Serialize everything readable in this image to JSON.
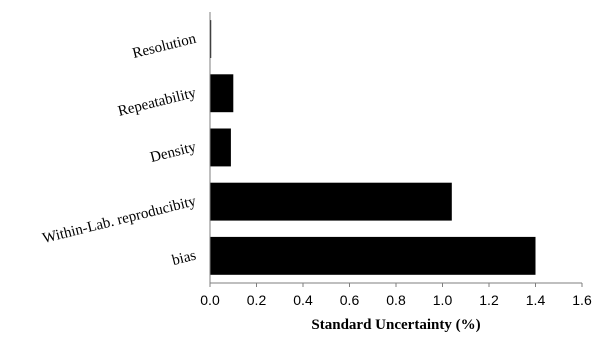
{
  "chart_data": {
    "type": "bar",
    "orientation": "horizontal",
    "categories": [
      "Resolution",
      "Repeatability",
      "Density",
      "Within-Lab. reproducibity",
      "bias"
    ],
    "values": [
      0.005,
      0.1,
      0.09,
      1.04,
      1.4
    ],
    "title": "",
    "xlabel": "Standard Uncertainty (%)",
    "ylabel": "",
    "xlim": [
      0,
      1.6
    ],
    "xticks": [
      "0.0",
      "0.2",
      "0.4",
      "0.6",
      "0.8",
      "1.0",
      "1.2",
      "1.4",
      "1.6"
    ],
    "grid": false,
    "legend": "none",
    "bar_color": "#000000"
  }
}
